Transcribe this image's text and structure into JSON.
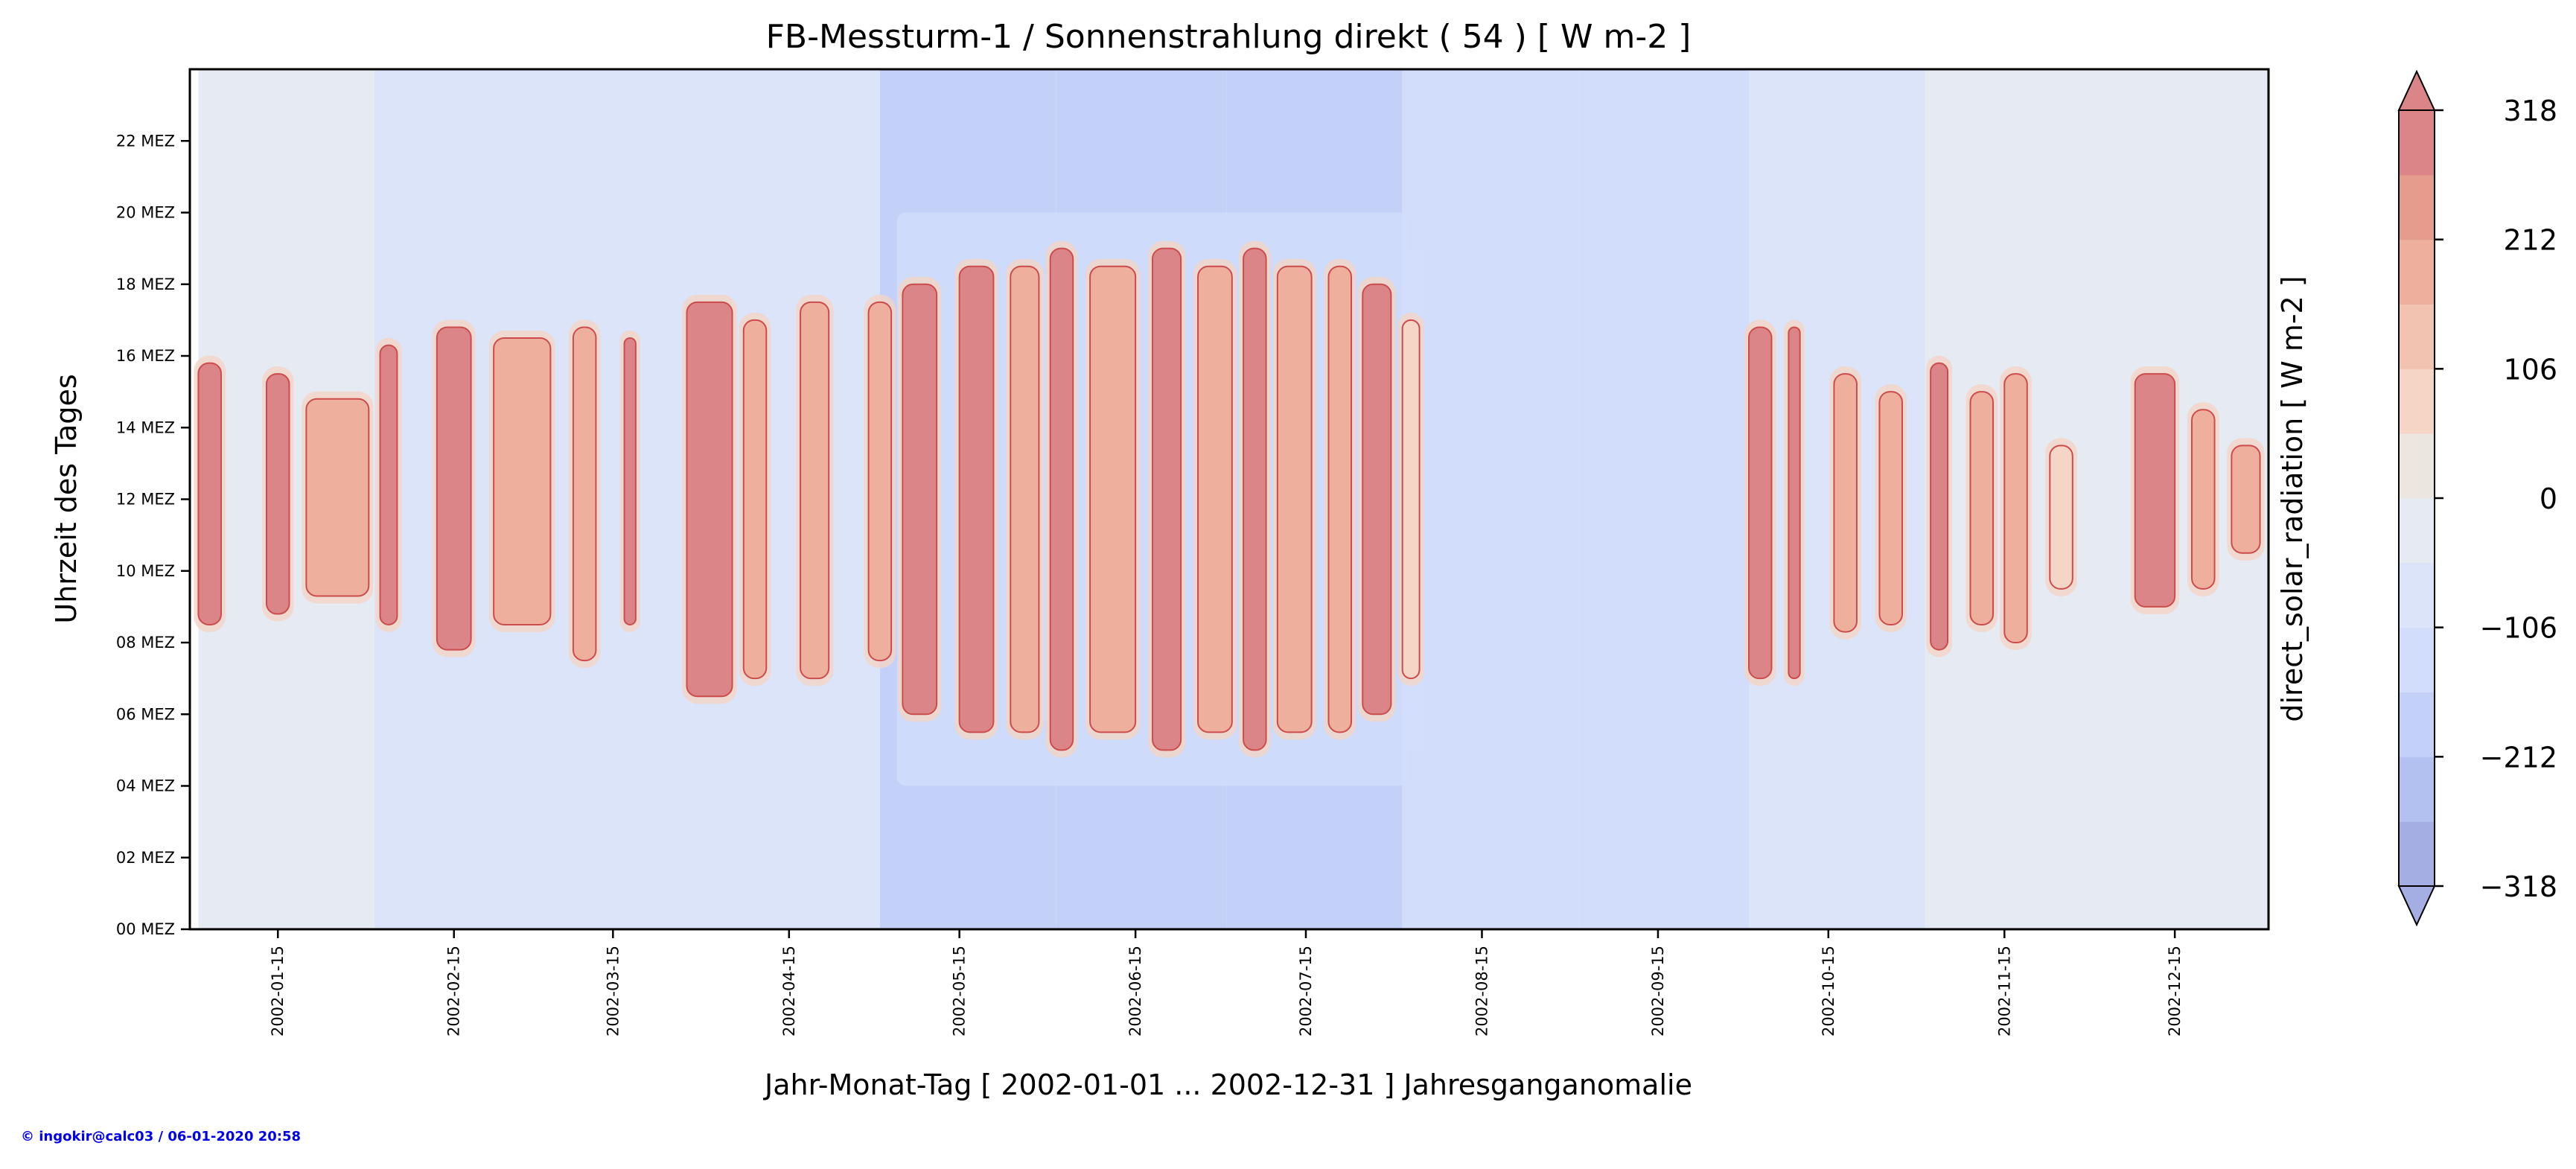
{
  "chart_data": {
    "type": "heatmap",
    "title": "FB-Messturm-1 / Sonnenstrahlung direkt ( 54 ) [ W m-2 ]",
    "xlabel": "Jahr-Monat-Tag [ 2002-01-01 ... 2002-12-31 ] Jahresganganomalie",
    "ylabel": "Uhrzeit des Tages",
    "colorbar_label": "direct_solar_radiation [ W m-2 ]",
    "x_range_days": [
      -1.5,
      364.5
    ],
    "y_range_hours": [
      0,
      24
    ],
    "x_ticks": [
      {
        "day": 14,
        "label": "2002-01-15"
      },
      {
        "day": 45,
        "label": "2002-02-15"
      },
      {
        "day": 73,
        "label": "2002-03-15"
      },
      {
        "day": 104,
        "label": "2002-04-15"
      },
      {
        "day": 134,
        "label": "2002-05-15"
      },
      {
        "day": 165,
        "label": "2002-06-15"
      },
      {
        "day": 195,
        "label": "2002-07-15"
      },
      {
        "day": 226,
        "label": "2002-08-15"
      },
      {
        "day": 257,
        "label": "2002-09-15"
      },
      {
        "day": 287,
        "label": "2002-10-15"
      },
      {
        "day": 318,
        "label": "2002-11-15"
      },
      {
        "day": 348,
        "label": "2002-12-15"
      }
    ],
    "y_ticks": [
      {
        "hour": 0,
        "label": "00 MEZ"
      },
      {
        "hour": 2,
        "label": "02 MEZ"
      },
      {
        "hour": 4,
        "label": "04 MEZ"
      },
      {
        "hour": 6,
        "label": "06 MEZ"
      },
      {
        "hour": 8,
        "label": "08 MEZ"
      },
      {
        "hour": 10,
        "label": "10 MEZ"
      },
      {
        "hour": 12,
        "label": "12 MEZ"
      },
      {
        "hour": 14,
        "label": "14 MEZ"
      },
      {
        "hour": 16,
        "label": "16 MEZ"
      },
      {
        "hour": 18,
        "label": "18 MEZ"
      },
      {
        "hour": 20,
        "label": "20 MEZ"
      },
      {
        "hour": 22,
        "label": "22 MEZ"
      }
    ],
    "colorbar_levels": [
      -318,
      -265,
      -212,
      -159,
      -106,
      -53,
      0,
      53,
      106,
      159,
      212,
      265,
      318
    ],
    "colorbar_colors": [
      "#a4aee3",
      "#b3c1f0",
      "#c3d1f8",
      "#d1ddfb",
      "#dbe4f8",
      "#e6eaf2",
      "#ece6e1",
      "#f4d5c6",
      "#f3c3b1",
      "#eeb09d",
      "#e69c8c",
      "#dc8588"
    ],
    "colorbar_ticks": [
      {
        "value": -318,
        "label": "−318"
      },
      {
        "value": -212,
        "label": "−212"
      },
      {
        "value": -106,
        "label": "−106"
      },
      {
        "value": 0,
        "label": "0"
      },
      {
        "value": 106,
        "label": "106"
      },
      {
        "value": 212,
        "label": "212"
      },
      {
        "value": 318,
        "label": "318"
      }
    ],
    "night_anomaly_by_month": [
      {
        "month": "2002-01",
        "start_day": 0,
        "end_day": 31,
        "value": -20
      },
      {
        "month": "2002-02",
        "start_day": 31,
        "end_day": 59,
        "value": -60
      },
      {
        "month": "2002-03",
        "start_day": 59,
        "end_day": 90,
        "value": -60
      },
      {
        "month": "2002-04",
        "start_day": 90,
        "end_day": 120,
        "value": -100
      },
      {
        "month": "2002-05",
        "start_day": 120,
        "end_day": 151,
        "value": -160
      },
      {
        "month": "2002-06",
        "start_day": 151,
        "end_day": 181,
        "value": -160
      },
      {
        "month": "2002-07",
        "start_day": 181,
        "end_day": 212,
        "value": -160
      },
      {
        "month": "2002-08",
        "start_day": 212,
        "end_day": 243,
        "value": -130
      },
      {
        "month": "2002-09",
        "start_day": 243,
        "end_day": 273,
        "value": -130
      },
      {
        "month": "2002-10",
        "start_day": 273,
        "end_day": 304,
        "value": -60
      },
      {
        "month": "2002-11",
        "start_day": 304,
        "end_day": 334,
        "value": -20
      },
      {
        "month": "2002-12",
        "start_day": 334,
        "end_day": 365,
        "value": -20
      }
    ],
    "sunny_periods": [
      {
        "start_day": 0,
        "end_day": 4,
        "hour_from": 8.5,
        "hour_to": 15.8,
        "value": 318
      },
      {
        "start_day": 12,
        "end_day": 16,
        "hour_from": 8.8,
        "hour_to": 15.5,
        "value": 318
      },
      {
        "start_day": 19,
        "end_day": 30,
        "hour_from": 9.3,
        "hour_to": 14.8,
        "value": 212
      },
      {
        "start_day": 32,
        "end_day": 35,
        "hour_from": 8.5,
        "hour_to": 16.3,
        "value": 318
      },
      {
        "start_day": 42,
        "end_day": 48,
        "hour_from": 7.8,
        "hour_to": 16.8,
        "value": 318
      },
      {
        "start_day": 52,
        "end_day": 62,
        "hour_from": 8.5,
        "hour_to": 16.5,
        "value": 212
      },
      {
        "start_day": 66,
        "end_day": 70,
        "hour_from": 7.5,
        "hour_to": 16.8,
        "value": 212
      },
      {
        "start_day": 75,
        "end_day": 77,
        "hour_from": 8.5,
        "hour_to": 16.5,
        "value": 318
      },
      {
        "start_day": 86,
        "end_day": 94,
        "hour_from": 6.5,
        "hour_to": 17.5,
        "value": 318
      },
      {
        "start_day": 96,
        "end_day": 100,
        "hour_from": 7.0,
        "hour_to": 17.0,
        "value": 212
      },
      {
        "start_day": 106,
        "end_day": 111,
        "hour_from": 7.0,
        "hour_to": 17.5,
        "value": 212
      },
      {
        "start_day": 118,
        "end_day": 122,
        "hour_from": 7.5,
        "hour_to": 17.5,
        "value": 212
      },
      {
        "start_day": 124,
        "end_day": 130,
        "hour_from": 6.0,
        "hour_to": 18.0,
        "value": 318
      },
      {
        "start_day": 134,
        "end_day": 140,
        "hour_from": 5.5,
        "hour_to": 18.5,
        "value": 318
      },
      {
        "start_day": 143,
        "end_day": 148,
        "hour_from": 5.5,
        "hour_to": 18.5,
        "value": 212
      },
      {
        "start_day": 150,
        "end_day": 154,
        "hour_from": 5.0,
        "hour_to": 19.0,
        "value": 318
      },
      {
        "start_day": 157,
        "end_day": 165,
        "hour_from": 5.5,
        "hour_to": 18.5,
        "value": 212
      },
      {
        "start_day": 168,
        "end_day": 173,
        "hour_from": 5.0,
        "hour_to": 19.0,
        "value": 318
      },
      {
        "start_day": 176,
        "end_day": 182,
        "hour_from": 5.5,
        "hour_to": 18.5,
        "value": 212
      },
      {
        "start_day": 184,
        "end_day": 188,
        "hour_from": 5.0,
        "hour_to": 19.0,
        "value": 318
      },
      {
        "start_day": 190,
        "end_day": 196,
        "hour_from": 5.5,
        "hour_to": 18.5,
        "value": 212
      },
      {
        "start_day": 199,
        "end_day": 203,
        "hour_from": 5.5,
        "hour_to": 18.5,
        "value": 212
      },
      {
        "start_day": 205,
        "end_day": 210,
        "hour_from": 6.0,
        "hour_to": 18.0,
        "value": 318
      },
      {
        "start_day": 212,
        "end_day": 215,
        "hour_from": 7.0,
        "hour_to": 17.0,
        "value": 106
      },
      {
        "start_day": 273,
        "end_day": 277,
        "hour_from": 7.0,
        "hour_to": 16.8,
        "value": 318
      },
      {
        "start_day": 280,
        "end_day": 282,
        "hour_from": 7.0,
        "hour_to": 16.8,
        "value": 318
      },
      {
        "start_day": 288,
        "end_day": 292,
        "hour_from": 8.3,
        "hour_to": 15.5,
        "value": 212
      },
      {
        "start_day": 296,
        "end_day": 300,
        "hour_from": 8.5,
        "hour_to": 15.0,
        "value": 212
      },
      {
        "start_day": 305,
        "end_day": 308,
        "hour_from": 7.8,
        "hour_to": 15.8,
        "value": 318
      },
      {
        "start_day": 312,
        "end_day": 316,
        "hour_from": 8.5,
        "hour_to": 15.0,
        "value": 212
      },
      {
        "start_day": 318,
        "end_day": 322,
        "hour_from": 8.0,
        "hour_to": 15.5,
        "value": 212
      },
      {
        "start_day": 326,
        "end_day": 330,
        "hour_from": 9.5,
        "hour_to": 13.5,
        "value": 106
      },
      {
        "start_day": 341,
        "end_day": 348,
        "hour_from": 9.0,
        "hour_to": 15.5,
        "value": 318
      },
      {
        "start_day": 351,
        "end_day": 355,
        "hour_from": 9.5,
        "hour_to": 14.5,
        "value": 212
      },
      {
        "start_day": 358,
        "end_day": 363,
        "hour_from": 10.5,
        "hour_to": 13.5,
        "value": 212
      }
    ],
    "cloudy_periods": [
      {
        "start_day": 123,
        "end_day": 213,
        "hour_from": 4.0,
        "hour_to": 20.0,
        "value": -140
      },
      {
        "start_day": 213,
        "end_day": 216,
        "hour_from": 5.0,
        "hour_to": 19.0,
        "value": -140
      }
    ]
  },
  "footer": {
    "copyright": "© ingokir@calc03 / 06-01-2020 20:58"
  }
}
